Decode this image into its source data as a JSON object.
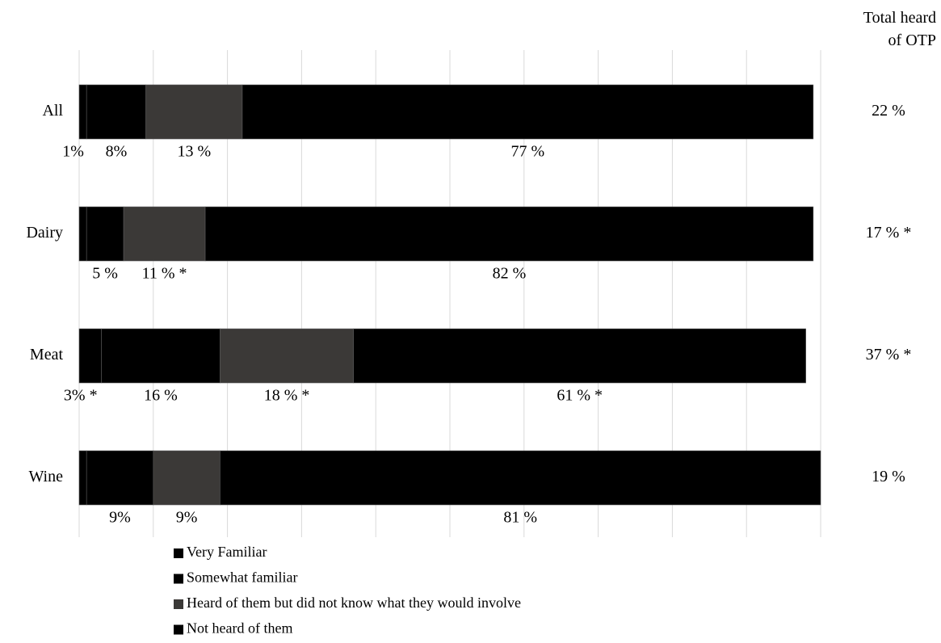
{
  "chart_data": {
    "type": "stacked-bar-horizontal",
    "categories": [
      "All",
      "Dairy",
      "Meat",
      "Wine"
    ],
    "series": [
      {
        "name": "Very Familiar",
        "color": "#000000",
        "values": [
          1,
          1,
          3,
          1
        ],
        "value_labels": [
          "1%",
          null,
          "3% *",
          null
        ]
      },
      {
        "name": "Somewhat familiar",
        "color": "#000000",
        "values": [
          8,
          5,
          16,
          9
        ],
        "value_labels": [
          "8%",
          "5 %",
          "16 %",
          "9%"
        ]
      },
      {
        "name": "Heard of them but did not know what they would involve",
        "color": "#3b3937",
        "values": [
          13,
          11,
          18,
          9
        ],
        "value_labels": [
          "13 %",
          "11 % *",
          "18 % *",
          "9%"
        ]
      },
      {
        "name": "Not heard of them",
        "color": "#000000",
        "values": [
          77,
          82,
          61,
          81
        ],
        "value_labels": [
          "77 %",
          "82 %",
          "61 % *",
          "81 %"
        ]
      }
    ],
    "xlim": [
      0,
      100
    ],
    "xticks": [
      0,
      10,
      20,
      30,
      40,
      50,
      60,
      70,
      80,
      90,
      100
    ],
    "grid": true,
    "totals": {
      "title": "Total heard of OTP",
      "values": [
        22,
        17,
        37,
        19
      ],
      "value_labels": [
        "22 %",
        "17 % *",
        "37 % *",
        "19 %"
      ]
    }
  }
}
